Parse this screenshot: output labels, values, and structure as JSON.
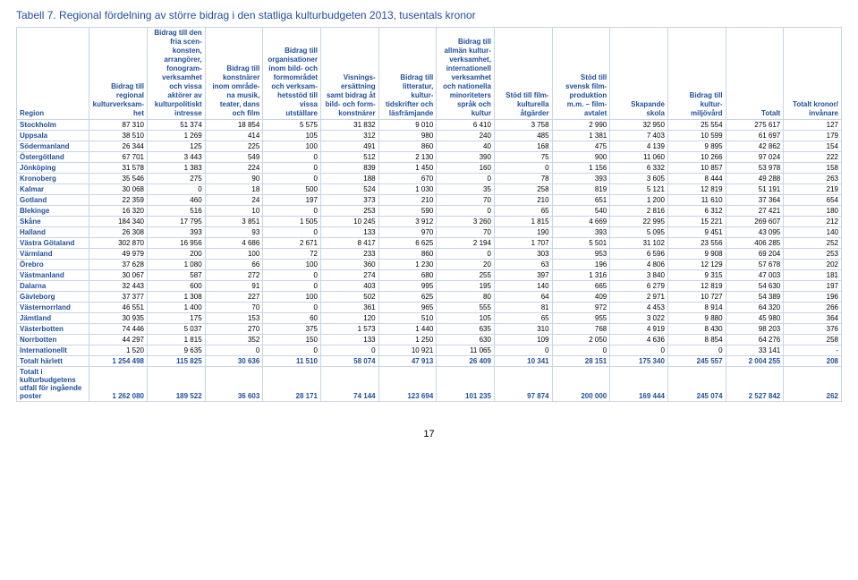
{
  "title": "Tabell 7. Regional fördelning av större bidrag i den statliga kulturbudgeten 2013, tusentals kronor",
  "columns": [
    "Region",
    "Bidrag till regional kultur­verksam­het",
    "Bidrag till den fria scen­konsten, arrangörer, fonogram­verksamhet och vissa aktörer av kulturpolitiskt intresse",
    "Bidrag till konst­närer inom område­na musik, teater, dans och film",
    "Bidrag till organisa­tioner inom bild- och form­området och verksam­hetsstöd till vissa utställare",
    "Visnings­ersättning samt bidrag åt bild- och form­konstnärer",
    "Bidrag till litteratur, kultur­tidskrifter och läs­främjande",
    "Bidrag till allmän kultur­verksamhet, internationell verksamhet och nationella minoriteters språk och kultur",
    "Stöd till film­kulturella åtgärder",
    "Stöd till svensk film­produkt­ion m.m. – film­avtalet",
    "Skapande skola",
    "Bidrag till kultur­miljövård",
    "Totalt",
    "Totalt kronor/ invånare"
  ],
  "rows": [
    [
      "Stockholm",
      "87 310",
      "51 374",
      "18 854",
      "5 575",
      "31 832",
      "9 010",
      "6 410",
      "3 758",
      "2 990",
      "32 950",
      "25 554",
      "275 617",
      "127"
    ],
    [
      "Uppsala",
      "38 510",
      "1 269",
      "414",
      "105",
      "312",
      "980",
      "240",
      "485",
      "1 381",
      "7 403",
      "10 599",
      "61 697",
      "179"
    ],
    [
      "Södermanland",
      "26 344",
      "125",
      "225",
      "100",
      "491",
      "860",
      "40",
      "168",
      "475",
      "4 139",
      "9 895",
      "42 862",
      "154"
    ],
    [
      "Östergötland",
      "67 701",
      "3 443",
      "549",
      "0",
      "512",
      "2 130",
      "390",
      "75",
      "900",
      "11 060",
      "10 266",
      "97 024",
      "222"
    ],
    [
      "Jönköping",
      "31 578",
      "1 383",
      "224",
      "0",
      "839",
      "1 450",
      "160",
      "0",
      "1 156",
      "6 332",
      "10 857",
      "53 978",
      "158"
    ],
    [
      "Kronoberg",
      "35 546",
      "275",
      "90",
      "0",
      "188",
      "670",
      "0",
      "78",
      "393",
      "3 605",
      "8 444",
      "49 288",
      "263"
    ],
    [
      "Kalmar",
      "30 068",
      "0",
      "18",
      "500",
      "524",
      "1 030",
      "35",
      "258",
      "819",
      "5 121",
      "12 819",
      "51 191",
      "219"
    ],
    [
      "Gotland",
      "22 359",
      "460",
      "24",
      "197",
      "373",
      "210",
      "70",
      "210",
      "651",
      "1 200",
      "11 610",
      "37 364",
      "654"
    ],
    [
      "Blekinge",
      "16 320",
      "516",
      "10",
      "0",
      "253",
      "590",
      "0",
      "65",
      "540",
      "2 816",
      "6 312",
      "27 421",
      "180"
    ],
    [
      "Skåne",
      "184 340",
      "17 795",
      "3 851",
      "1 505",
      "10 245",
      "3 912",
      "3 260",
      "1 815",
      "4 669",
      "22 995",
      "15 221",
      "269 607",
      "212"
    ],
    [
      "Halland",
      "26 308",
      "393",
      "93",
      "0",
      "133",
      "970",
      "70",
      "190",
      "393",
      "5 095",
      "9 451",
      "43 095",
      "140"
    ],
    [
      "Västra Götaland",
      "302 870",
      "16 956",
      "4 686",
      "2 671",
      "8 417",
      "6 625",
      "2 194",
      "1 707",
      "5 501",
      "31 102",
      "23 556",
      "406 285",
      "252"
    ],
    [
      "Värmland",
      "49 979",
      "200",
      "100",
      "72",
      "233",
      "860",
      "0",
      "303",
      "953",
      "6 596",
      "9 908",
      "69 204",
      "253"
    ],
    [
      "Örebro",
      "37 628",
      "1 080",
      "66",
      "100",
      "360",
      "1 230",
      "20",
      "63",
      "196",
      "4 806",
      "12 129",
      "57 678",
      "202"
    ],
    [
      "Västmanland",
      "30 067",
      "587",
      "272",
      "0",
      "274",
      "680",
      "255",
      "397",
      "1 316",
      "3 840",
      "9 315",
      "47 003",
      "181"
    ],
    [
      "Dalarna",
      "32 443",
      "600",
      "91",
      "0",
      "403",
      "995",
      "195",
      "140",
      "665",
      "6 279",
      "12 819",
      "54 630",
      "197"
    ],
    [
      "Gävleborg",
      "37 377",
      "1 308",
      "227",
      "100",
      "502",
      "625",
      "80",
      "64",
      "409",
      "2 971",
      "10 727",
      "54 389",
      "196"
    ],
    [
      "Västernorrland",
      "46 551",
      "1 400",
      "70",
      "0",
      "361",
      "965",
      "555",
      "81",
      "972",
      "4 453",
      "8 914",
      "64 320",
      "266"
    ],
    [
      "Jämtland",
      "30 935",
      "175",
      "153",
      "60",
      "120",
      "510",
      "105",
      "65",
      "955",
      "3 022",
      "9 880",
      "45 980",
      "364"
    ],
    [
      "Västerbotten",
      "74 446",
      "5 037",
      "270",
      "375",
      "1 573",
      "1 440",
      "635",
      "310",
      "768",
      "4 919",
      "8 430",
      "98 203",
      "376"
    ],
    [
      "Norrbotten",
      "44 297",
      "1 815",
      "352",
      "150",
      "133",
      "1 250",
      "630",
      "109",
      "2 050",
      "4 636",
      "8 854",
      "64 276",
      "258"
    ],
    [
      "Internationellt",
      "1 520",
      "9 635",
      "0",
      "0",
      "0",
      "10 921",
      "11 065",
      "0",
      "0",
      "0",
      "0",
      "33 141",
      "-"
    ]
  ],
  "totals": [
    [
      "Totalt härlett",
      "1 254 498",
      "115 825",
      "30 636",
      "11 510",
      "58 074",
      "47 913",
      "26 409",
      "10 341",
      "28 151",
      "175 340",
      "245 557",
      "2 004 255",
      "208"
    ],
    [
      "Totalt i kulturbudgetens utfall för ingående poster",
      "1 262 080",
      "189 522",
      "36 603",
      "28 171",
      "74 144",
      "123 694",
      "101 235",
      "97 874",
      "200 000",
      "169 444",
      "245 074",
      "2 527 842",
      "262"
    ]
  ],
  "pagenum": "17",
  "colors": {
    "heading": "#1f4e9c",
    "border": "#c8d4e6",
    "text": "#000000",
    "background": "#ffffff"
  }
}
